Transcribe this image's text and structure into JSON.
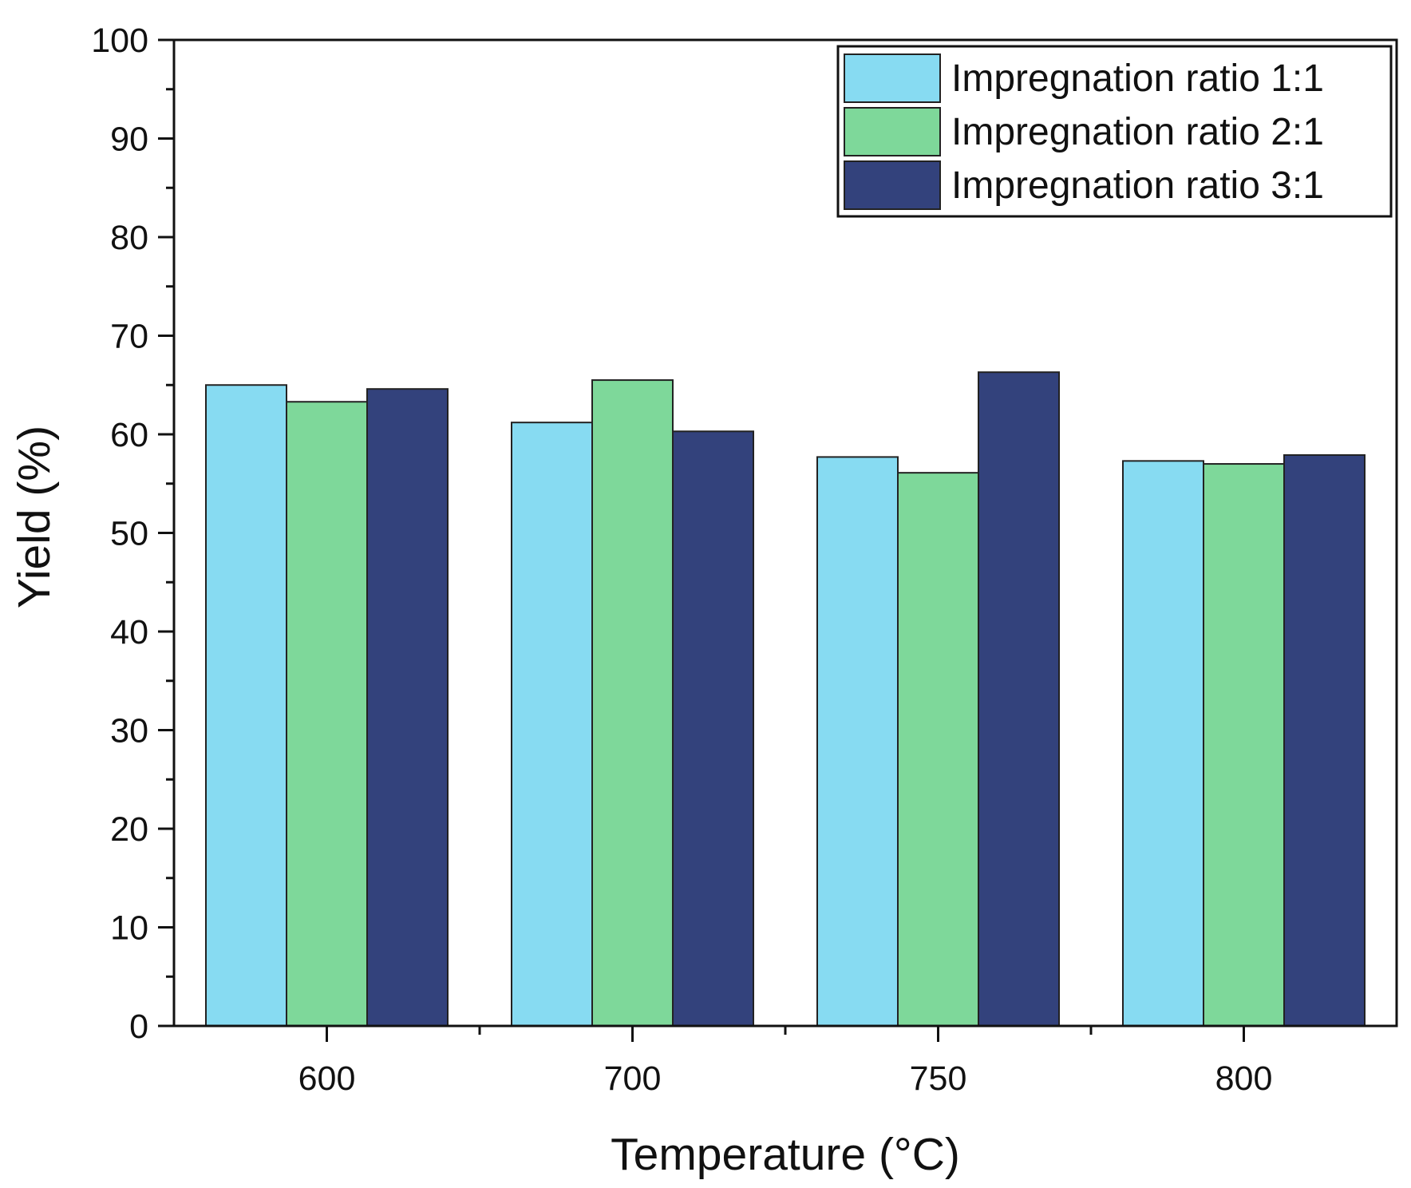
{
  "chart_data": {
    "type": "bar",
    "title": "",
    "xlabel": "Temperature (°C)",
    "ylabel": "Yield (%)",
    "ylim": [
      0,
      100
    ],
    "yticks": [
      0,
      10,
      20,
      30,
      40,
      50,
      60,
      70,
      80,
      90,
      100
    ],
    "categories": [
      "600",
      "700",
      "750",
      "800"
    ],
    "series": [
      {
        "name": "Impregnation ratio 1:1",
        "color": "#87DBF2",
        "values": [
          65.0,
          61.2,
          57.7,
          57.3
        ]
      },
      {
        "name": "Impregnation ratio 2:1",
        "color": "#7ED89A",
        "values": [
          63.3,
          65.5,
          56.1,
          57.0
        ]
      },
      {
        "name": "Impregnation ratio 3:1",
        "color": "#33427C",
        "values": [
          64.6,
          60.3,
          66.3,
          57.9
        ]
      }
    ],
    "legend_position": "top-right",
    "grid": false
  }
}
